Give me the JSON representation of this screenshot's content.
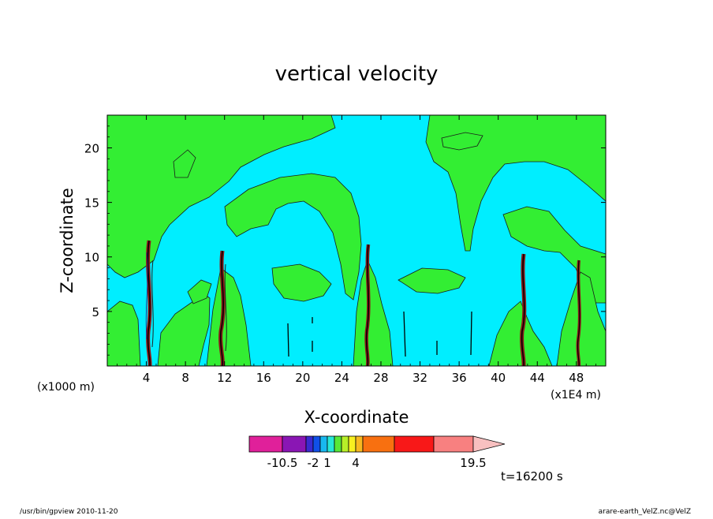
{
  "chart_data": {
    "type": "heatmap",
    "title": "vertical velocity",
    "xlabel": "X-coordinate",
    "ylabel": "Z-coordinate",
    "x_unit_left": "(x1000 m)",
    "x_unit_right": "(x1E4 m)",
    "x_ticks": [
      "4",
      "8",
      "12",
      "16",
      "20",
      "24",
      "28",
      "32",
      "36",
      "40",
      "44",
      "48"
    ],
    "y_ticks": [
      "5",
      "10",
      "15",
      "20"
    ],
    "xlim": [
      0,
      51
    ],
    "ylim": [
      0,
      23
    ],
    "grid": false,
    "colorbar": {
      "tick_labels": [
        "-10.5",
        "-2",
        "1",
        "4",
        "19.5"
      ],
      "colors": [
        "#e0209a",
        "#8a16b4",
        "#3a2ad0",
        "#1050e8",
        "#18b8f0",
        "#28e8d8",
        "#58e838",
        "#b8f028",
        "#f8f020",
        "#f8b820",
        "#f87010",
        "#f81818",
        "#f88080"
      ],
      "arrow_color": "#f8c0c0"
    },
    "field_colors": {
      "background": "#00eeff",
      "updraft_region": "#33ee33",
      "core": "#8b1a1a"
    },
    "updraft_cores_x": [
      4.3,
      12,
      27,
      43,
      48.6
    ]
  },
  "time_label": "t=16200 s",
  "footer": {
    "left": "/usr/bin/gpview   2010-11-20",
    "right": "arare-earth_VelZ.nc@VelZ"
  }
}
